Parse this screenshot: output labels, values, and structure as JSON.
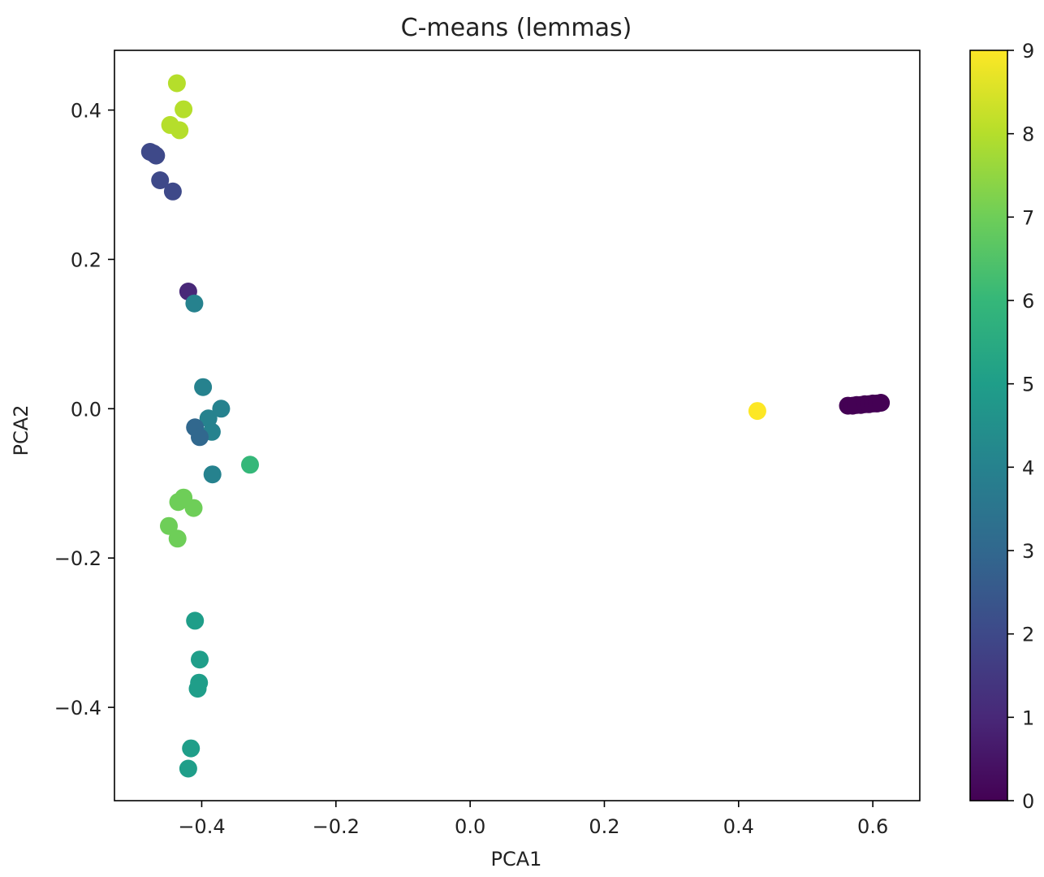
{
  "chart_data": {
    "type": "scatter",
    "title": "C-means (lemmas)",
    "xlabel": "PCA1",
    "ylabel": "PCA2",
    "xlim": [
      -0.53,
      0.67
    ],
    "ylim": [
      -0.525,
      0.48
    ],
    "xticks": [
      {
        "value": -0.4,
        "label": "−0.4"
      },
      {
        "value": -0.2,
        "label": "−0.2"
      },
      {
        "value": 0.0,
        "label": "0.0"
      },
      {
        "value": 0.2,
        "label": "0.2"
      },
      {
        "value": 0.4,
        "label": "0.4"
      },
      {
        "value": 0.6,
        "label": "0.6"
      }
    ],
    "yticks": [
      {
        "value": -0.4,
        "label": "−0.4"
      },
      {
        "value": -0.2,
        "label": "−0.2"
      },
      {
        "value": 0.0,
        "label": "0.0"
      },
      {
        "value": 0.2,
        "label": "0.2"
      },
      {
        "value": 0.4,
        "label": "0.4"
      }
    ],
    "colormap": "viridis",
    "colorbar": {
      "min": 0,
      "max": 9,
      "ticks": [
        "0",
        "1",
        "2",
        "3",
        "4",
        "5",
        "6",
        "7",
        "8",
        "9"
      ]
    },
    "points": [
      {
        "x": -0.437,
        "y": 0.436,
        "c": 8
      },
      {
        "x": -0.427,
        "y": 0.401,
        "c": 8
      },
      {
        "x": -0.447,
        "y": 0.38,
        "c": 8
      },
      {
        "x": -0.433,
        "y": 0.373,
        "c": 8
      },
      {
        "x": -0.477,
        "y": 0.344,
        "c": 2
      },
      {
        "x": -0.472,
        "y": 0.342,
        "c": 2
      },
      {
        "x": -0.468,
        "y": 0.339,
        "c": 2
      },
      {
        "x": -0.462,
        "y": 0.306,
        "c": 2
      },
      {
        "x": -0.443,
        "y": 0.291,
        "c": 2
      },
      {
        "x": -0.42,
        "y": 0.157,
        "c": 1
      },
      {
        "x": -0.411,
        "y": 0.141,
        "c": 4
      },
      {
        "x": -0.398,
        "y": 0.029,
        "c": 4
      },
      {
        "x": -0.371,
        "y": 0.0,
        "c": 4
      },
      {
        "x": -0.39,
        "y": -0.013,
        "c": 4
      },
      {
        "x": -0.41,
        "y": -0.025,
        "c": 3
      },
      {
        "x": -0.385,
        "y": -0.031,
        "c": 4
      },
      {
        "x": -0.403,
        "y": -0.038,
        "c": 3
      },
      {
        "x": -0.384,
        "y": -0.088,
        "c": 4
      },
      {
        "x": -0.328,
        "y": -0.075,
        "c": 6
      },
      {
        "x": -0.427,
        "y": -0.119,
        "c": 7
      },
      {
        "x": -0.435,
        "y": -0.125,
        "c": 7
      },
      {
        "x": -0.412,
        "y": -0.133,
        "c": 7
      },
      {
        "x": -0.449,
        "y": -0.157,
        "c": 7
      },
      {
        "x": -0.436,
        "y": -0.174,
        "c": 7
      },
      {
        "x": -0.41,
        "y": -0.284,
        "c": 5
      },
      {
        "x": -0.403,
        "y": -0.336,
        "c": 5
      },
      {
        "x": -0.404,
        "y": -0.367,
        "c": 5
      },
      {
        "x": -0.406,
        "y": -0.375,
        "c": 5
      },
      {
        "x": -0.416,
        "y": -0.455,
        "c": 5
      },
      {
        "x": -0.42,
        "y": -0.482,
        "c": 5
      },
      {
        "x": 0.428,
        "y": -0.003,
        "c": 9
      },
      {
        "x": 0.563,
        "y": 0.004,
        "c": 0
      },
      {
        "x": 0.57,
        "y": 0.004,
        "c": 0
      },
      {
        "x": 0.576,
        "y": 0.005,
        "c": 0
      },
      {
        "x": 0.582,
        "y": 0.005,
        "c": 0
      },
      {
        "x": 0.588,
        "y": 0.006,
        "c": 0
      },
      {
        "x": 0.594,
        "y": 0.006,
        "c": 0
      },
      {
        "x": 0.6,
        "y": 0.007,
        "c": 0
      },
      {
        "x": 0.606,
        "y": 0.007,
        "c": 0
      },
      {
        "x": 0.612,
        "y": 0.008,
        "c": 0
      }
    ]
  }
}
